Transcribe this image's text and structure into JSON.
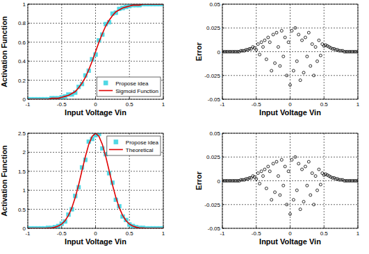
{
  "chart_data": [
    {
      "type": "line",
      "xlabel": "Input Voltage Vin",
      "ylabel": "Activation Function",
      "xlim": [
        -1,
        1
      ],
      "xticks": [
        -1,
        -0.5,
        0,
        0.5,
        1
      ],
      "ylim": [
        0,
        1
      ],
      "yticks": [
        0,
        0.2,
        0.4,
        0.6,
        0.8,
        1
      ],
      "grid": true,
      "legend": "lower right",
      "series": [
        {
          "name": "Propose idea",
          "type": "scatter",
          "marker": "square",
          "color": "#4fd8e4",
          "x": [
            -1,
            -0.95,
            -0.9,
            -0.85,
            -0.8,
            -0.75,
            -0.7,
            -0.65,
            -0.6,
            -0.55,
            -0.5,
            -0.45,
            -0.4,
            -0.35,
            -0.3,
            -0.25,
            -0.2,
            -0.15,
            -0.1,
            -0.05,
            0,
            0.05,
            0.1,
            0.15,
            0.2,
            0.25,
            0.3,
            0.35,
            0.4,
            0.45,
            0.5,
            0.55,
            0.6,
            0.65,
            0.7,
            0.75,
            0.8,
            0.85,
            0.9,
            0.95,
            1
          ],
          "values": [
            0,
            0,
            0,
            0,
            0,
            0,
            0,
            0.01,
            0.01,
            0.01,
            0.02,
            0.03,
            0.05,
            0.05,
            0.07,
            0.13,
            0.16,
            0.25,
            0.3,
            0.42,
            0.47,
            0.62,
            0.68,
            0.79,
            0.81,
            0.9,
            0.91,
            0.95,
            0.96,
            0.97,
            0.98,
            0.99,
            0.99,
            0.99,
            1,
            1,
            1,
            1,
            1,
            1,
            1
          ]
        },
        {
          "name": "Sigmoid Function",
          "type": "line",
          "line_style": "solid",
          "color": "#e00000",
          "x": [
            -1,
            -0.95,
            -0.9,
            -0.85,
            -0.8,
            -0.75,
            -0.7,
            -0.65,
            -0.6,
            -0.55,
            -0.5,
            -0.45,
            -0.4,
            -0.35,
            -0.3,
            -0.25,
            -0.2,
            -0.15,
            -0.1,
            -0.05,
            0,
            0.05,
            0.1,
            0.15,
            0.2,
            0.25,
            0.3,
            0.35,
            0.4,
            0.45,
            0.5,
            0.55,
            0.6,
            0.65,
            0.7,
            0.75,
            0.8,
            0.85,
            0.9,
            0.95,
            1
          ],
          "values": [
            0,
            0,
            0,
            0,
            0,
            0,
            0,
            0.01,
            0.01,
            0.01,
            0.02,
            0.03,
            0.04,
            0.06,
            0.08,
            0.12,
            0.17,
            0.23,
            0.31,
            0.4,
            0.5,
            0.6,
            0.69,
            0.77,
            0.83,
            0.88,
            0.92,
            0.94,
            0.96,
            0.97,
            0.98,
            0.99,
            0.99,
            0.99,
            1,
            1,
            1,
            1,
            1,
            1,
            1
          ]
        }
      ]
    },
    {
      "type": "scatter",
      "xlabel": "Input Voltage Vin",
      "ylabel": "Error",
      "xlim": [
        -1,
        1
      ],
      "xticks": [
        -1,
        -0.5,
        0,
        0.5,
        1
      ],
      "ylim": [
        -0.05,
        0.05
      ],
      "yticks": [
        -0.05,
        -0.025,
        0,
        0.025,
        0.05
      ],
      "grid": true,
      "series": [
        {
          "type": "scatter",
          "marker": "circle",
          "color": "#000000",
          "x": [
            -1,
            -0.975,
            -0.95,
            -0.925,
            -0.9,
            -0.875,
            -0.85,
            -0.825,
            -0.8,
            -0.775,
            -0.75,
            -0.725,
            -0.7,
            -0.675,
            -0.65,
            -0.625,
            -0.6,
            -0.575,
            -0.55,
            -0.525,
            -0.5,
            -0.475,
            -0.45,
            -0.425,
            -0.4,
            -0.375,
            -0.35,
            -0.325,
            -0.3,
            -0.275,
            -0.25,
            -0.225,
            -0.2,
            -0.175,
            -0.15,
            -0.125,
            -0.1,
            -0.075,
            -0.05,
            -0.025,
            0,
            0.025,
            0.05,
            0.075,
            0.1,
            0.125,
            0.15,
            0.175,
            0.2,
            0.225,
            0.25,
            0.275,
            0.3,
            0.325,
            0.35,
            0.375,
            0.4,
            0.425,
            0.45,
            0.475,
            0.5,
            0.525,
            0.55,
            0.575,
            0.6,
            0.625,
            0.65,
            0.675,
            0.7,
            0.725,
            0.75,
            0.775,
            0.8,
            0.825,
            0.85,
            0.875,
            0.9,
            0.925,
            0.95,
            0.975,
            1
          ],
          "values": [
            0,
            0,
            0,
            0,
            0,
            0,
            0,
            0,
            0,
            0,
            0,
            0.001,
            0.001,
            0.001,
            0.002,
            0.002,
            0.003,
            0.003,
            0.005,
            0.004,
            0.002,
            0.008,
            -0.003,
            0.01,
            0.005,
            0.012,
            -0.008,
            0.015,
            0.01,
            -0.02,
            0.018,
            -0.012,
            0.02,
            0.005,
            -0.015,
            0.022,
            -0.005,
            0.015,
            -0.025,
            0.01,
            -0.035,
            0.022,
            -0.02,
            0.025,
            -0.01,
            0.018,
            -0.03,
            0.012,
            -0.022,
            0.015,
            -0.005,
            0.02,
            -0.015,
            0.008,
            -0.025,
            0.005,
            -0.01,
            0.012,
            -0.004,
            0.008,
            0.006,
            0.007,
            0.006,
            0.005,
            0.004,
            0.003,
            0.003,
            0.002,
            0.002,
            0.001,
            0.001,
            0.001,
            0,
            0,
            0,
            0,
            0,
            0,
            0,
            0,
            0
          ]
        }
      ]
    },
    {
      "type": "line",
      "xlabel": "Input Voltage Vin",
      "ylabel": "Activation Function",
      "xlim": [
        -1,
        1
      ],
      "xticks": [
        -1,
        -0.5,
        0,
        0.5,
        1
      ],
      "ylim": [
        0,
        2.5
      ],
      "yticks": [
        0,
        0.5,
        1,
        1.5,
        2,
        2.5
      ],
      "grid": true,
      "legend": "upper right",
      "series": [
        {
          "name": "Propose idea",
          "type": "scatter",
          "marker": "square",
          "color": "#4fd8e4",
          "x": [
            -1,
            -0.95,
            -0.9,
            -0.85,
            -0.8,
            -0.75,
            -0.7,
            -0.65,
            -0.6,
            -0.55,
            -0.5,
            -0.45,
            -0.4,
            -0.35,
            -0.3,
            -0.25,
            -0.2,
            -0.15,
            -0.1,
            -0.05,
            0,
            0.05,
            0.1,
            0.15,
            0.2,
            0.25,
            0.3,
            0.35,
            0.4,
            0.45,
            0.5,
            0.55,
            0.6,
            0.65,
            0.7,
            0.75,
            0.8,
            0.85,
            0.9,
            0.95,
            1
          ],
          "values": [
            0,
            0,
            0,
            0,
            0,
            0,
            0.01,
            0.01,
            0.03,
            0.06,
            0.12,
            0.18,
            0.36,
            0.5,
            0.85,
            1.08,
            1.6,
            1.8,
            2.28,
            2.35,
            2.45,
            2.48,
            2.1,
            1.95,
            1.45,
            1.2,
            0.75,
            0.58,
            0.31,
            0.22,
            0.1,
            0.06,
            0.03,
            0.01,
            0.01,
            0,
            0,
            0,
            0,
            0,
            0
          ]
        },
        {
          "name": "Theoretical",
          "type": "line",
          "line_style": "solid",
          "color": "#e00000",
          "x": [
            -1,
            -0.95,
            -0.9,
            -0.85,
            -0.8,
            -0.75,
            -0.7,
            -0.65,
            -0.6,
            -0.55,
            -0.5,
            -0.45,
            -0.4,
            -0.35,
            -0.3,
            -0.25,
            -0.2,
            -0.15,
            -0.1,
            -0.05,
            0,
            0.05,
            0.1,
            0.15,
            0.2,
            0.25,
            0.3,
            0.35,
            0.4,
            0.45,
            0.5,
            0.55,
            0.6,
            0.65,
            0.7,
            0.75,
            0.8,
            0.85,
            0.9,
            0.95,
            1
          ],
          "values": [
            0,
            0,
            0,
            0,
            0,
            0,
            0.01,
            0.01,
            0.03,
            0.06,
            0.11,
            0.2,
            0.34,
            0.54,
            0.81,
            1.14,
            1.52,
            1.89,
            2.21,
            2.42,
            2.5,
            2.42,
            2.21,
            1.89,
            1.52,
            1.14,
            0.81,
            0.54,
            0.34,
            0.2,
            0.11,
            0.06,
            0.03,
            0.01,
            0.01,
            0,
            0,
            0,
            0,
            0,
            0
          ]
        }
      ]
    },
    {
      "type": "scatter",
      "xlabel": "Input Voltage Vin",
      "ylabel": "Error",
      "xlim": [
        -1,
        1
      ],
      "xticks": [
        -1,
        -0.5,
        0,
        0.5,
        1
      ],
      "ylim": [
        -0.05,
        0.05
      ],
      "yticks": [
        -0.05,
        -0.025,
        0,
        0.025,
        0.05
      ],
      "grid": true,
      "series": [
        {
          "type": "scatter",
          "marker": "circle",
          "color": "#000000",
          "x": [
            -1,
            -0.975,
            -0.95,
            -0.925,
            -0.9,
            -0.875,
            -0.85,
            -0.825,
            -0.8,
            -0.775,
            -0.75,
            -0.725,
            -0.7,
            -0.675,
            -0.65,
            -0.625,
            -0.6,
            -0.575,
            -0.55,
            -0.525,
            -0.5,
            -0.475,
            -0.45,
            -0.425,
            -0.4,
            -0.375,
            -0.35,
            -0.325,
            -0.3,
            -0.275,
            -0.25,
            -0.225,
            -0.2,
            -0.175,
            -0.15,
            -0.125,
            -0.1,
            -0.075,
            -0.05,
            -0.025,
            0,
            0.025,
            0.05,
            0.075,
            0.1,
            0.125,
            0.15,
            0.175,
            0.2,
            0.225,
            0.25,
            0.275,
            0.3,
            0.325,
            0.35,
            0.375,
            0.4,
            0.425,
            0.45,
            0.475,
            0.5,
            0.525,
            0.55,
            0.575,
            0.6,
            0.625,
            0.65,
            0.675,
            0.7,
            0.725,
            0.75,
            0.775,
            0.8,
            0.825,
            0.85,
            0.875,
            0.9,
            0.925,
            0.95,
            0.975,
            1
          ],
          "values": [
            0,
            0,
            0,
            0,
            0,
            0,
            0,
            0,
            0,
            0,
            0,
            0.001,
            0.001,
            0.001,
            0.002,
            0.002,
            0.003,
            0.003,
            0.005,
            0.004,
            0.002,
            0.008,
            -0.003,
            0.01,
            0.005,
            0.012,
            -0.008,
            0.015,
            0.01,
            -0.02,
            0.018,
            -0.012,
            0.02,
            0.005,
            -0.015,
            0.022,
            -0.005,
            0.015,
            -0.025,
            0.01,
            -0.035,
            0.022,
            -0.02,
            0.025,
            -0.01,
            0.018,
            -0.03,
            0.012,
            -0.022,
            0.015,
            -0.005,
            0.02,
            -0.015,
            0.008,
            -0.025,
            0.005,
            -0.01,
            0.012,
            -0.004,
            0.008,
            0.006,
            0.007,
            0.006,
            0.005,
            0.004,
            0.003,
            0.003,
            0.002,
            0.002,
            0.001,
            0.001,
            0.001,
            0,
            0,
            0,
            0,
            0,
            0,
            0,
            0,
            0
          ]
        }
      ]
    }
  ]
}
